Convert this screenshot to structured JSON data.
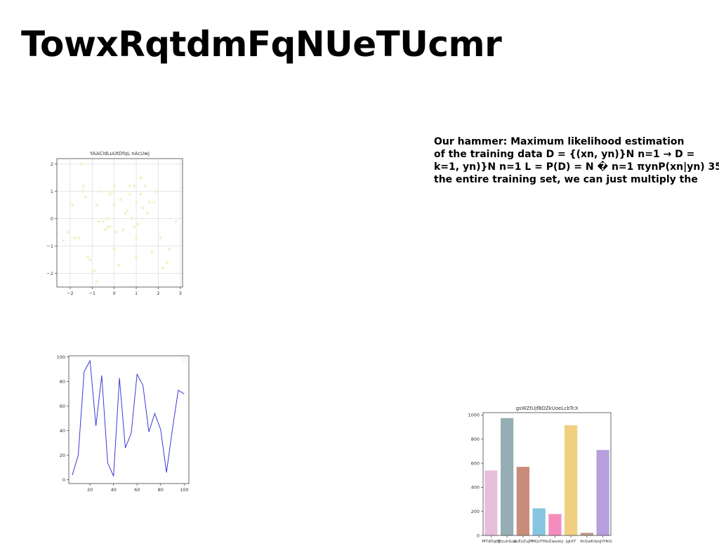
{
  "slide": {
    "title": "TowxRqtdmFqNUeTUcmr",
    "body_lines": [
      "Our hammer: Maximum likelihood estimation",
      "of the training data D = {(xn, yn)}N n=1 → D =",
      "k=1, yn)}N n=1 L = P(D) = N � n=1 πynP(xn|yn) 35",
      "the entire training set, we can just multiply the"
    ]
  },
  "chart_data": [
    {
      "id": "scatter",
      "type": "scatter",
      "title": "YAACidLuUtDfqL nAcUwj",
      "xlabel": "",
      "ylabel": "",
      "xlim": [
        -2.6,
        3.1
      ],
      "ylim": [
        -2.5,
        2.2
      ],
      "xticks": [
        -2,
        -1,
        0,
        1,
        2,
        3
      ],
      "yticks": [
        -2,
        -1,
        0,
        1,
        2
      ],
      "grid": true,
      "color": "#f2f0c8",
      "points": [
        [
          -2.3,
          -0.8
        ],
        [
          -2.1,
          -0.5
        ],
        [
          -1.9,
          0.5
        ],
        [
          -1.8,
          -0.7
        ],
        [
          -1.6,
          -0.7
        ],
        [
          -1.5,
          2.0
        ],
        [
          -1.4,
          1.2
        ],
        [
          -1.4,
          1.0
        ],
        [
          -1.3,
          0.8
        ],
        [
          -1.2,
          -1.4
        ],
        [
          -1.1,
          -1.5
        ],
        [
          -0.9,
          -1.9
        ],
        [
          -0.8,
          -2.3
        ],
        [
          -0.8,
          0.5
        ],
        [
          -0.6,
          1.0
        ],
        [
          -0.5,
          -0.1
        ],
        [
          -0.4,
          -0.4
        ],
        [
          -0.3,
          -0.3
        ],
        [
          -0.3,
          0.0
        ],
        [
          -0.2,
          -0.3
        ],
        [
          -0.2,
          0.9
        ],
        [
          -0.1,
          1.0
        ],
        [
          0.0,
          1.2
        ],
        [
          0.0,
          0.5
        ],
        [
          0.0,
          -1.1
        ],
        [
          0.1,
          -0.5
        ],
        [
          0.2,
          -1.7
        ],
        [
          0.4,
          -0.4
        ],
        [
          0.5,
          0.2
        ],
        [
          0.6,
          0.3
        ],
        [
          0.7,
          0.9
        ],
        [
          0.7,
          1.2
        ],
        [
          0.8,
          0.0
        ],
        [
          0.9,
          -0.3
        ],
        [
          1.0,
          -0.7
        ],
        [
          1.0,
          -1.4
        ],
        [
          1.0,
          0.6
        ],
        [
          1.1,
          -0.2
        ],
        [
          1.2,
          0.9
        ],
        [
          1.2,
          1.5
        ],
        [
          1.3,
          0.4
        ],
        [
          1.4,
          1.2
        ],
        [
          1.5,
          0.2
        ],
        [
          1.7,
          -1.2
        ],
        [
          1.8,
          0.6
        ],
        [
          1.9,
          1.0
        ],
        [
          2.1,
          -0.7
        ],
        [
          2.2,
          -1.8
        ],
        [
          2.4,
          -1.6
        ],
        [
          2.5,
          -1.1
        ],
        [
          2.8,
          -0.1
        ],
        [
          0.3,
          0.7
        ],
        [
          -0.7,
          -0.1
        ],
        [
          1.6,
          0.6
        ],
        [
          0.9,
          1.2
        ]
      ]
    },
    {
      "id": "line",
      "type": "line",
      "title": "",
      "xlabel": "",
      "ylabel": "",
      "xlim": [
        2,
        104
      ],
      "ylim": [
        -3,
        101
      ],
      "xticks": [
        20,
        40,
        60,
        80,
        100
      ],
      "yticks": [
        0,
        20,
        40,
        60,
        80,
        100
      ],
      "grid": false,
      "color": "#3a3ad6",
      "x": [
        5,
        10,
        15,
        20,
        25,
        30,
        35,
        40,
        45,
        50,
        55,
        60,
        65,
        70,
        75,
        80,
        85,
        90,
        95,
        100
      ],
      "y": [
        4,
        20,
        88,
        97,
        44,
        85,
        14,
        3,
        83,
        26,
        38,
        86,
        77,
        39,
        54,
        41,
        6,
        41,
        73,
        70
      ]
    },
    {
      "id": "bar",
      "type": "bar",
      "title": "gsWZtUjfBOZkUoeLcbTcX",
      "xlabel": "",
      "ylabel": "",
      "ylim": [
        0,
        1020
      ],
      "yticks": [
        0,
        200,
        400,
        600,
        800,
        1000
      ],
      "grid": false,
      "categories": [
        "MTdDgQJ",
        "fEouhGup",
        "GcEzZuJM",
        "MQzTHl",
        "oZwosky",
        "JgtXT",
        "lfcGwK",
        "dzsJYHkG"
      ],
      "values": [
        540,
        975,
        570,
        225,
        178,
        915,
        22,
        710
      ],
      "colors": [
        "#e8bfdb",
        "#97adb5",
        "#c98c7b",
        "#86c5e0",
        "#f58cbd",
        "#f0d080",
        "#c09a8e",
        "#b89edb"
      ]
    }
  ]
}
